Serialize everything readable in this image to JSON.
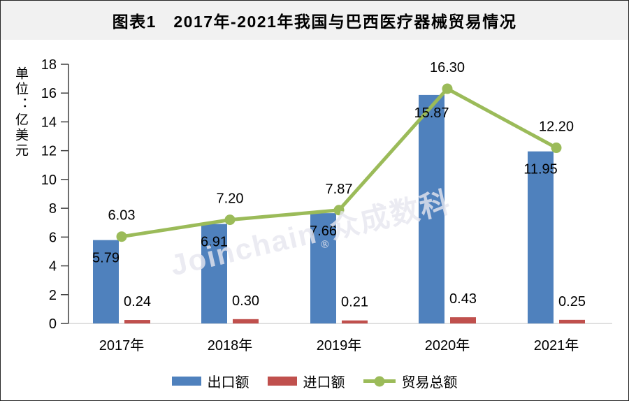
{
  "colors": {
    "export_blue": "#4F81BD",
    "import_red": "#C0504D",
    "total_green": "#9BBB59",
    "title_band_bg": "#F1F1F1",
    "frame_border": "#242424",
    "axis_line": "#D6D6D6",
    "tick_color": "#3F3F3F",
    "label_color": "#000000",
    "watermark_color": "#E7E7F0"
  },
  "watermark": {
    "text_latin": "Joinchain",
    "text_reg": "®",
    "text_cjk": "众成数科"
  },
  "chart_data": {
    "type": "bar",
    "subtype": "bar+line combo",
    "title": "图表1　2017年-2021年我国与巴西医疗器械贸易情况",
    "ylabel": "单位：亿美元",
    "xlabel": "",
    "categories": [
      "2017年",
      "2018年",
      "2019年",
      "2020年",
      "2021年"
    ],
    "series": [
      {
        "name": "出口额",
        "type": "bar",
        "color": "#4F81BD",
        "values": [
          5.79,
          6.91,
          7.66,
          15.87,
          11.95
        ]
      },
      {
        "name": "进口额",
        "type": "bar",
        "color": "#C0504D",
        "values": [
          0.24,
          0.3,
          0.21,
          0.43,
          0.25
        ]
      },
      {
        "name": "贸易总额",
        "type": "line",
        "color": "#9BBB59",
        "values": [
          6.03,
          7.2,
          7.87,
          16.3,
          12.2
        ]
      }
    ],
    "ylim": [
      0,
      18
    ],
    "ytick_step": 2,
    "grid": false,
    "value_labels": true,
    "value_label_decimals": 2,
    "legend_position": "bottom"
  }
}
